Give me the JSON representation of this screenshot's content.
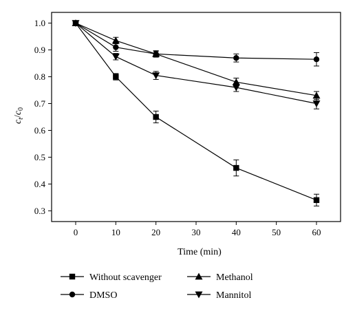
{
  "chart_data": {
    "type": "line",
    "xlabel": "Time (min)",
    "ylabel_main": "c",
    "ylabel_sub1": "t",
    "ylabel_mid": "/",
    "ylabel_main2": "c",
    "ylabel_sub2": "0",
    "xlim": [
      -6,
      66
    ],
    "ylim": [
      0.26,
      1.04
    ],
    "xticks": [
      0,
      10,
      20,
      30,
      40,
      50,
      60
    ],
    "yticks": [
      0.3,
      0.4,
      0.5,
      0.6,
      0.7,
      0.8,
      0.9,
      1.0
    ],
    "xtick_labels": [
      "0",
      "10",
      "20",
      "30",
      "40",
      "50",
      "60"
    ],
    "ytick_labels": [
      "0.3",
      "0.4",
      "0.5",
      "0.6",
      "0.7",
      "0.8",
      "0.9",
      "1.0"
    ],
    "legend_position": "bottom",
    "series": [
      {
        "name": "Without scavenger",
        "marker": "square",
        "x": [
          0,
          10,
          20,
          40,
          60
        ],
        "y": [
          1.0,
          0.8,
          0.65,
          0.46,
          0.34
        ],
        "err": [
          0,
          0.012,
          0.022,
          0.03,
          0.022
        ]
      },
      {
        "name": "DMSO",
        "marker": "circle",
        "x": [
          0,
          10,
          20,
          40,
          60
        ],
        "y": [
          1.0,
          0.91,
          0.885,
          0.87,
          0.865
        ],
        "err": [
          0,
          0.015,
          0.012,
          0.015,
          0.025
        ]
      },
      {
        "name": "Methanol",
        "marker": "triangle-up",
        "x": [
          0,
          10,
          20,
          40,
          60
        ],
        "y": [
          1.0,
          0.935,
          0.885,
          0.78,
          0.73
        ],
        "err": [
          0,
          0.012,
          0.01,
          0.015,
          0.015
        ]
      },
      {
        "name": "Mannitol",
        "marker": "triangle-down",
        "x": [
          0,
          10,
          20,
          40,
          60
        ],
        "y": [
          1.0,
          0.875,
          0.805,
          0.76,
          0.7
        ],
        "err": [
          0,
          0.012,
          0.015,
          0.015,
          0.02
        ]
      }
    ]
  }
}
